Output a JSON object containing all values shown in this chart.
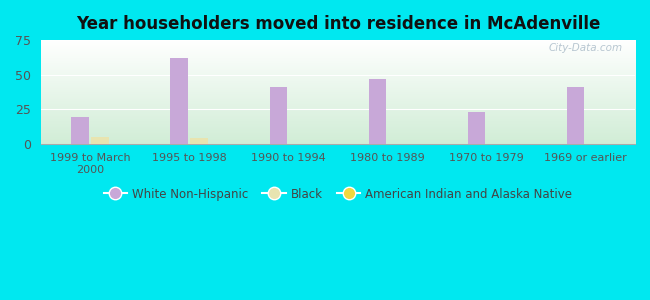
{
  "title": "Year householders moved into residence in McAdenville",
  "categories": [
    "1999 to March\n2000",
    "1995 to 1998",
    "1990 to 1994",
    "1980 to 1989",
    "1970 to 1979",
    "1969 or earlier"
  ],
  "white_non_hispanic": [
    19,
    62,
    41,
    47,
    23,
    41
  ],
  "black": [
    5,
    4,
    0,
    0,
    0,
    0
  ],
  "american_indian": [
    0,
    0,
    0,
    0,
    0,
    0
  ],
  "white_color": "#c8a8d8",
  "black_color": "#e8e4b0",
  "american_indian_color": "#f0d840",
  "bg_outer": "#00e8f0",
  "ylim": [
    0,
    75
  ],
  "yticks": [
    0,
    25,
    50,
    75
  ],
  "bar_width": 0.18,
  "watermark": "City-Data.com",
  "legend_labels": [
    "White Non-Hispanic",
    "Black",
    "American Indian and Alaska Native"
  ],
  "legend_colors": [
    "#c8a8d8",
    "#e8e4b0",
    "#f0d840"
  ]
}
